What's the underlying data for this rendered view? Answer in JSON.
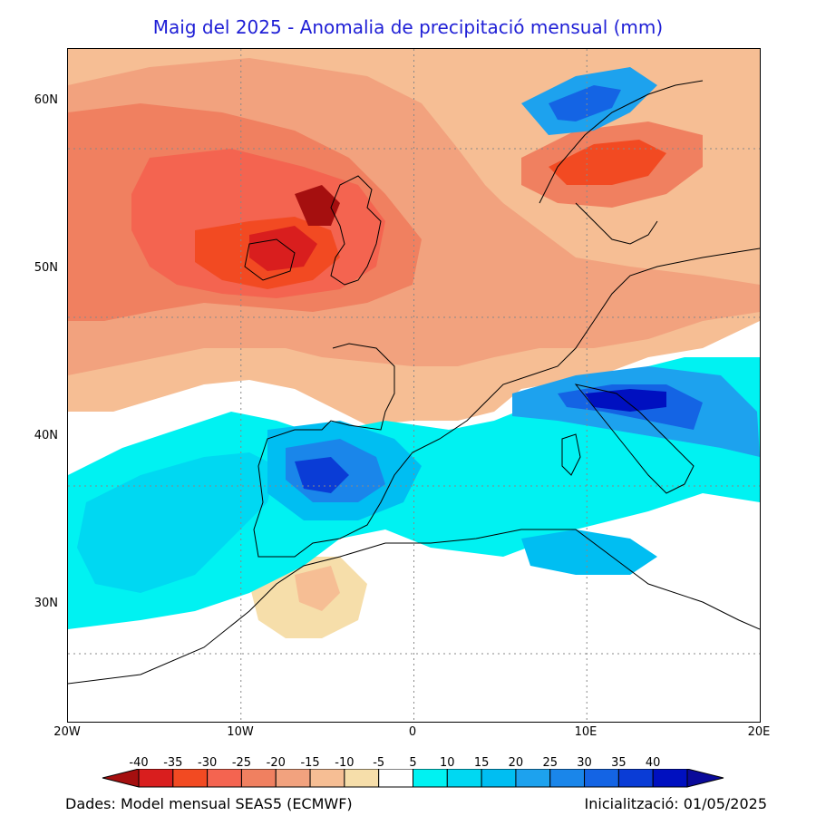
{
  "title": "Maig del 2025 - Anomalia de precipitació mensual (mm)",
  "map": {
    "projection": "lat-lon",
    "lon_range": [
      -20,
      20
    ],
    "lat_range": [
      26,
      66
    ],
    "lat_labels": [
      "60N",
      "50N",
      "40N",
      "30N"
    ],
    "lon_labels": [
      "20W",
      "10W",
      "0",
      "10E",
      "20E"
    ],
    "field": "precipitation anomaly (mm)",
    "pattern": "negative anomalies (dry) over northwestern Europe and the Atlantic; positive anomalies (wet) over Iberia, the western Mediterranean, Italy and southern Scandinavia"
  },
  "colorbar": {
    "ticks": [
      "-40",
      "-35",
      "-30",
      "-25",
      "-20",
      "-15",
      "-10",
      "-5",
      "5",
      "10",
      "15",
      "20",
      "25",
      "30",
      "35",
      "40"
    ],
    "colors": [
      "#a50f0f",
      "#d91e1e",
      "#f24a22",
      "#f46450",
      "#f08060",
      "#f2a27e",
      "#f6be94",
      "#f6deaa",
      "#ffffff",
      "#00f2f2",
      "#00d8f2",
      "#00bef2",
      "#1da2ee",
      "#1a86ea",
      "#1464e4",
      "#0a3cd6",
      "#0010c0",
      "#0a0a9a"
    ]
  },
  "footer": {
    "source": "Dades: Model mensual SEAS5 (ECMWF)",
    "init": "Inicialització: 01/05/2025"
  }
}
